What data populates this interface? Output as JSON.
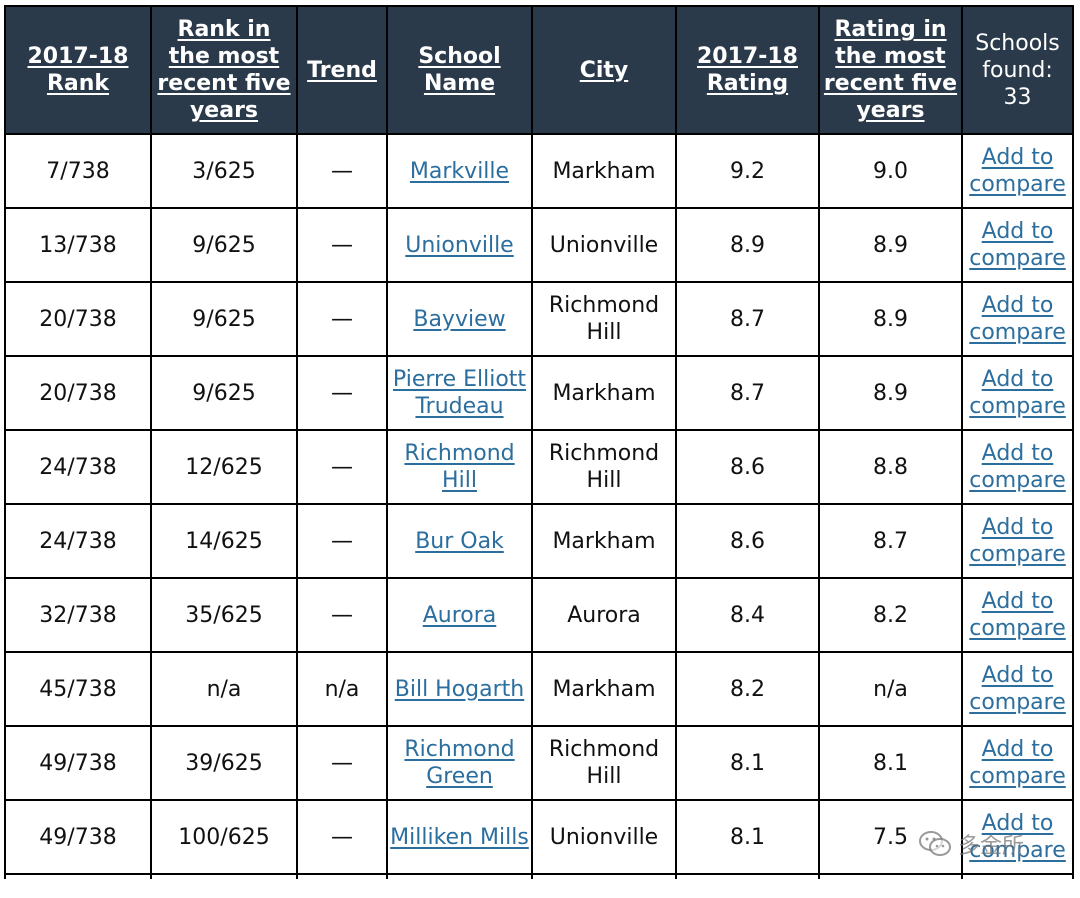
{
  "header": {
    "rank_2017": "2017-18 Rank",
    "rank_recent": "Rank in the most recent five years",
    "trend": "Trend",
    "school_name": "School Name",
    "city": "City",
    "rating_2017": "2017-18 Rating",
    "rating_recent": "Rating in the most recent five years",
    "schools_found_label": "Schools found:",
    "schools_found_count": "33"
  },
  "compare_label": "Add to compare",
  "rows": [
    {
      "rank": "7/738",
      "rank_recent": "3/625",
      "trend": "—",
      "school": "Markville",
      "city": "Markham",
      "rating": "9.2",
      "rating_recent": "9.0"
    },
    {
      "rank": "13/738",
      "rank_recent": "9/625",
      "trend": "—",
      "school": "Unionville",
      "city": "Unionville",
      "rating": "8.9",
      "rating_recent": "8.9"
    },
    {
      "rank": "20/738",
      "rank_recent": "9/625",
      "trend": "—",
      "school": "Bayview",
      "city": "Richmond Hill",
      "rating": "8.7",
      "rating_recent": "8.9"
    },
    {
      "rank": "20/738",
      "rank_recent": "9/625",
      "trend": "—",
      "school": "Pierre Elliott Trudeau",
      "city": "Markham",
      "rating": "8.7",
      "rating_recent": "8.9"
    },
    {
      "rank": "24/738",
      "rank_recent": "12/625",
      "trend": "—",
      "school": "Richmond Hill",
      "city": "Richmond Hill",
      "rating": "8.6",
      "rating_recent": "8.8"
    },
    {
      "rank": "24/738",
      "rank_recent": "14/625",
      "trend": "—",
      "school": "Bur Oak",
      "city": "Markham",
      "rating": "8.6",
      "rating_recent": "8.7"
    },
    {
      "rank": "32/738",
      "rank_recent": "35/625",
      "trend": "—",
      "school": "Aurora",
      "city": "Aurora",
      "rating": "8.4",
      "rating_recent": "8.2"
    },
    {
      "rank": "45/738",
      "rank_recent": "n/a",
      "trend": "n/a",
      "school": "Bill Hogarth",
      "city": "Markham",
      "rating": "8.2",
      "rating_recent": "n/a"
    },
    {
      "rank": "49/738",
      "rank_recent": "39/625",
      "trend": "—",
      "school": "Richmond Green",
      "city": "Richmond Hill",
      "rating": "8.1",
      "rating_recent": "8.1"
    },
    {
      "rank": "49/738",
      "rank_recent": "100/625",
      "trend": "—",
      "school": "Milliken Mills",
      "city": "Unionville",
      "rating": "8.1",
      "rating_recent": "7.5"
    }
  ],
  "watermark": {
    "text": "多金所",
    "icon": "wechat-icon"
  }
}
